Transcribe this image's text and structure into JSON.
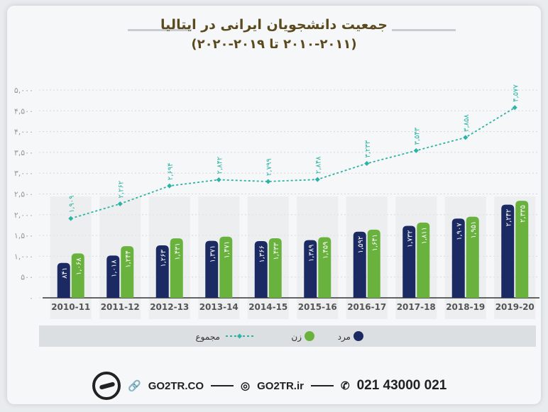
{
  "header": {
    "title": "جمعیت دانشجویان ایرانی در ایتالیا",
    "subtitle": "(۲۰۱۰-۲۰۱۱ تا ۲۰۱۹-۲۰۲۰)"
  },
  "chart_data": {
    "type": "bar",
    "title": "جمعیت دانشجویان ایرانی در ایتالیا",
    "subtitle": "(۲۰۱۰-۲۰۱۱ تا ۲۰۱۹-۲۰۲۰)",
    "categories": [
      "2010-11",
      "2011-12",
      "2012-13",
      "2013-14",
      "2014-15",
      "2015-16",
      "2016-17",
      "2017-18",
      "2018-19",
      "2019-20"
    ],
    "ylim": [
      0,
      5000
    ],
    "yticks": [
      0,
      500,
      1000,
      1500,
      2000,
      2500,
      3000,
      3500,
      4000,
      4500,
      5000
    ],
    "ytick_labels": [
      "۰",
      "۵۰۰",
      "۱,۰۰۰",
      "۱,۵۰۰",
      "۲,۰۰۰",
      "۲,۵۰۰",
      "۳,۰۰۰",
      "۳,۵۰۰",
      "۴,۰۰۰",
      "۴,۵۰۰",
      "۵,۰۰۰"
    ],
    "grid": true,
    "legend_position": "bottom",
    "series": [
      {
        "name": "مرد",
        "kind": "bar",
        "color": "#1c2a63",
        "values": [
          841,
          1018,
          1263,
          1371,
          1366,
          1389,
          1592,
          1732,
          1907,
          2242
        ],
        "labels": [
          "۸۴۱",
          "۱,۰۱۸",
          "۱,۲۶۳",
          "۱,۳۷۱",
          "۱,۳۶۶",
          "۱,۳۸۹",
          "۱,۵۹۲",
          "۱,۷۳۲",
          "۱,۹۰۷",
          "۲,۲۴۲"
        ]
      },
      {
        "name": "زن",
        "kind": "bar",
        "color": "#6ab23e",
        "values": [
          1068,
          1244,
          1431,
          1471,
          1433,
          1459,
          1641,
          1811,
          1951,
          2335
        ],
        "labels": [
          "۱,۰۶۸",
          "۱,۲۴۴",
          "۱,۴۳۱",
          "۱,۴۷۱",
          "۱,۴۳۳",
          "۱,۴۵۹",
          "۱,۶۴۱",
          "۱,۸۱۱",
          "۱,۹۵۱",
          "۲,۳۳۵"
        ]
      },
      {
        "name": "مجموع",
        "kind": "line",
        "style": "dotted",
        "color": "#2bb3a3",
        "values": [
          1909,
          2262,
          2694,
          2842,
          2799,
          2848,
          3233,
          3543,
          3858,
          4577
        ],
        "labels": [
          "۱,۹۰۹",
          "۲,۲۶۲",
          "۲,۶۹۴",
          "۲,۸۴۲",
          "۲,۷۹۹",
          "۲,۸۴۸",
          "۳,۲۳۳",
          "۳,۵۴۳",
          "۳,۸۵۸",
          "۴,۵۷۷"
        ]
      }
    ]
  },
  "footer": {
    "website": "GO2TR.CO",
    "instagram": "GO2TR.ir",
    "phone": "021 43000 021"
  },
  "colors": {
    "title": "#5b4a1e",
    "men": "#1c2a63",
    "women": "#6ab23e",
    "total": "#2bb3a3"
  }
}
